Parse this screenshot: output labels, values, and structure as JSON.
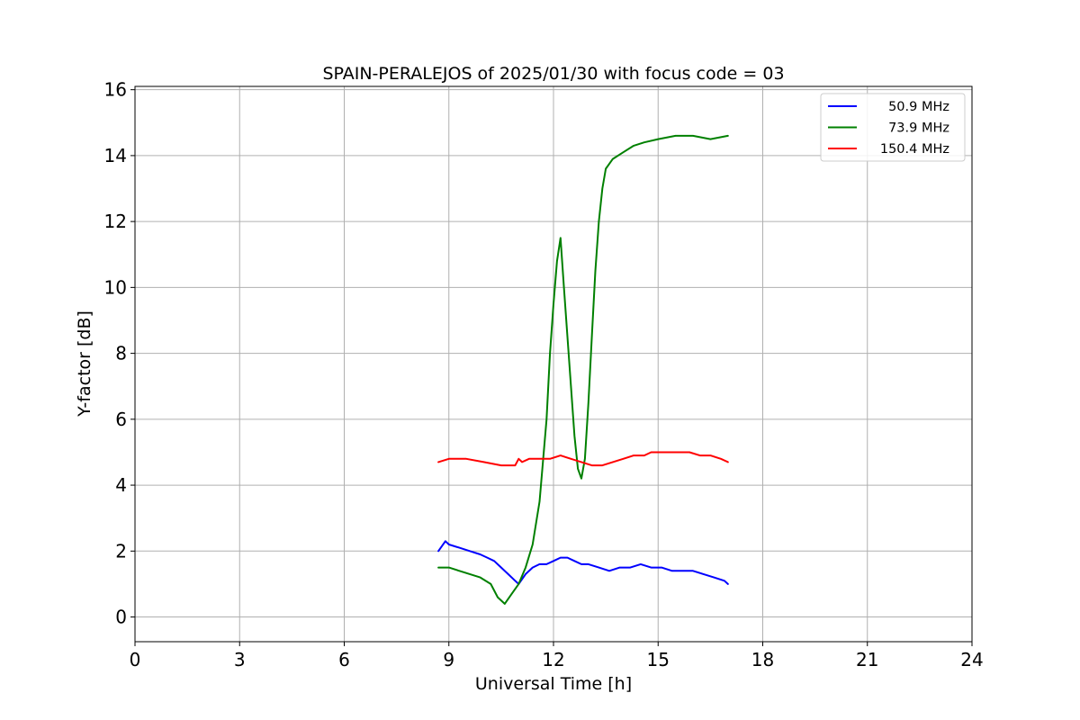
{
  "chart_data": {
    "type": "line",
    "title": "SPAIN-PERALEJOS of 2025/01/30 with focus code = 03",
    "xlabel": "Universal Time [h]",
    "ylabel": "Y-factor [dB]",
    "xlim": [
      0,
      24
    ],
    "ylim": [
      -0.75,
      16.1
    ],
    "xticks": [
      0,
      3,
      6,
      9,
      12,
      15,
      18,
      21,
      24
    ],
    "yticks": [
      0,
      2,
      4,
      6,
      8,
      10,
      12,
      14,
      16
    ],
    "grid": true,
    "legend_position": "top-right",
    "series": [
      {
        "name": "50.9 MHz",
        "color": "#0000ff",
        "x": [
          8.7,
          8.9,
          9.0,
          9.3,
          9.6,
          9.9,
          10.1,
          10.3,
          10.5,
          10.7,
          10.9,
          11.0,
          11.2,
          11.4,
          11.6,
          11.8,
          12.0,
          12.2,
          12.4,
          12.6,
          12.8,
          13.0,
          13.3,
          13.6,
          13.9,
          14.2,
          14.5,
          14.8,
          15.1,
          15.4,
          15.7,
          16.0,
          16.3,
          16.6,
          16.9,
          17.0
        ],
        "y": [
          2.0,
          2.3,
          2.2,
          2.1,
          2.0,
          1.9,
          1.8,
          1.7,
          1.5,
          1.3,
          1.1,
          1.0,
          1.3,
          1.5,
          1.6,
          1.6,
          1.7,
          1.8,
          1.8,
          1.7,
          1.6,
          1.6,
          1.5,
          1.4,
          1.5,
          1.5,
          1.6,
          1.5,
          1.5,
          1.4,
          1.4,
          1.4,
          1.3,
          1.2,
          1.1,
          1.0
        ]
      },
      {
        "name": "73.9 MHz",
        "color": "#008000",
        "x": [
          8.7,
          9.0,
          9.3,
          9.6,
          9.9,
          10.2,
          10.4,
          10.6,
          10.8,
          11.0,
          11.2,
          11.4,
          11.6,
          11.8,
          11.9,
          12.0,
          12.1,
          12.2,
          12.3,
          12.4,
          12.5,
          12.6,
          12.7,
          12.8,
          12.9,
          13.0,
          13.1,
          13.2,
          13.3,
          13.4,
          13.5,
          13.7,
          14.0,
          14.3,
          14.6,
          15.0,
          15.5,
          16.0,
          16.5,
          17.0
        ],
        "y": [
          1.5,
          1.5,
          1.4,
          1.3,
          1.2,
          1.0,
          0.6,
          0.4,
          0.7,
          1.0,
          1.5,
          2.2,
          3.5,
          6.0,
          8.0,
          9.5,
          10.8,
          11.5,
          10.0,
          8.5,
          7.0,
          5.5,
          4.5,
          4.2,
          4.8,
          6.5,
          8.5,
          10.5,
          12.0,
          13.0,
          13.6,
          13.9,
          14.1,
          14.3,
          14.4,
          14.5,
          14.6,
          14.6,
          14.5,
          14.6
        ]
      },
      {
        "name": "150.4 MHz",
        "color": "#ff0000",
        "x": [
          8.7,
          9.0,
          9.5,
          10.0,
          10.5,
          10.9,
          11.0,
          11.1,
          11.3,
          11.6,
          11.9,
          12.2,
          12.5,
          12.8,
          13.1,
          13.4,
          13.7,
          14.0,
          14.3,
          14.6,
          14.8,
          15.0,
          15.3,
          15.6,
          15.9,
          16.2,
          16.5,
          16.8,
          17.0
        ],
        "y": [
          4.7,
          4.8,
          4.8,
          4.7,
          4.6,
          4.6,
          4.8,
          4.7,
          4.8,
          4.8,
          4.8,
          4.9,
          4.8,
          4.7,
          4.6,
          4.6,
          4.7,
          4.8,
          4.9,
          4.9,
          5.0,
          5.0,
          5.0,
          5.0,
          5.0,
          4.9,
          4.9,
          4.8,
          4.7
        ]
      }
    ]
  }
}
